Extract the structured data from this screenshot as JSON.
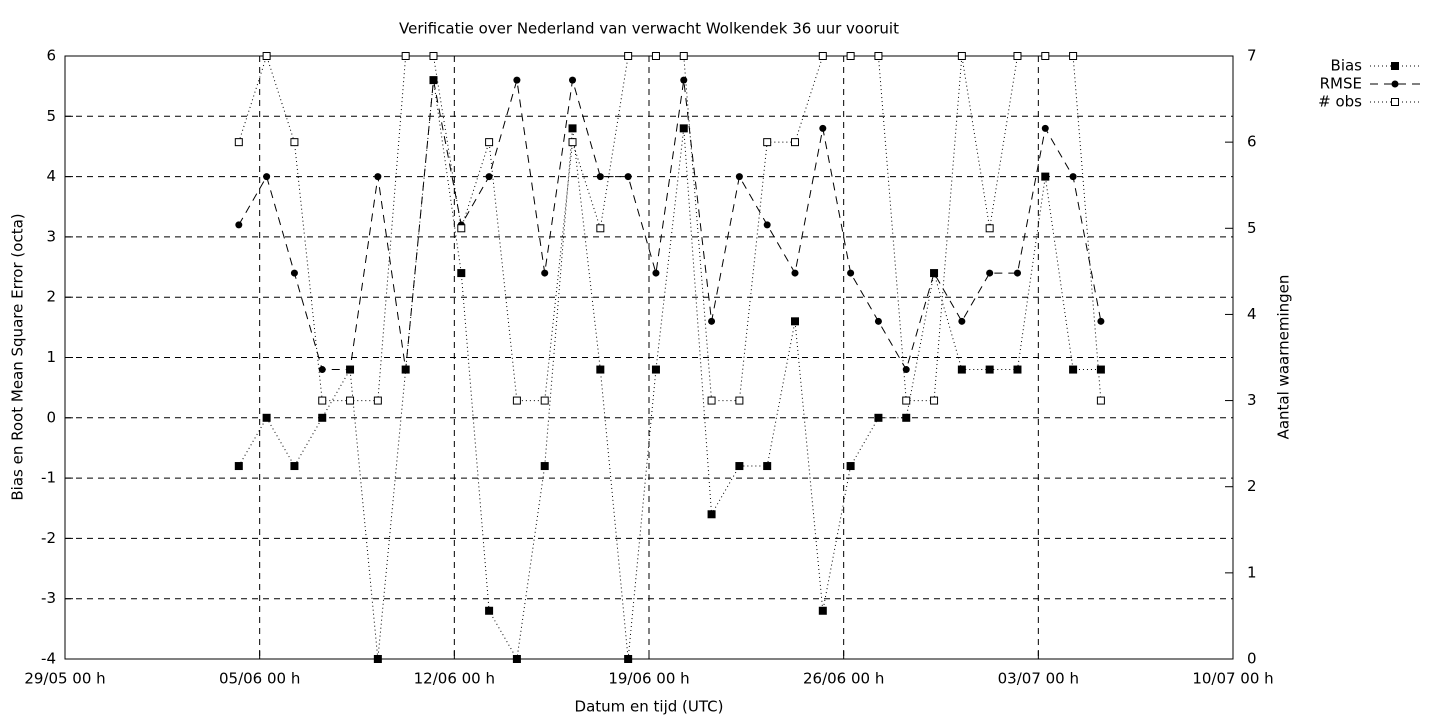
{
  "chart_data": {
    "type": "line",
    "title": "Verificatie over Nederland van verwacht Wolkendek 36 uur vooruit",
    "x_label": "Datum en tijd (UTC)",
    "y_label": "Bias en Root Mean Square Error (octa)",
    "y2_label": "Aantal waarnemingen",
    "x": [
      6.25,
      7.25,
      8.25,
      9.25,
      10.25,
      11.25,
      12.25,
      13.25,
      14.25,
      15.25,
      16.25,
      17.25,
      18.25,
      19.25,
      20.25,
      21.25,
      22.25,
      23.25,
      24.25,
      25.25,
      26.25,
      27.25,
      28.25,
      29.25,
      30.25,
      31.25,
      32.25,
      33.25,
      34.25,
      35.25,
      36.25,
      37.25
    ],
    "series": [
      {
        "name": "Bias",
        "color": "#000000",
        "dash": "dotted",
        "marker": "filled-square",
        "values": [
          -0.8,
          0,
          -0.8,
          0,
          0.8,
          -4,
          0.8,
          5.6,
          2.4,
          -3.2,
          -4,
          -0.8,
          4.8,
          0.8,
          -4,
          0.8,
          4.8,
          -1.6,
          -0.8,
          -0.8,
          1.6,
          -3.2,
          -0.8,
          0,
          0,
          2.4,
          0.8,
          0.8,
          0.8,
          4,
          0.8,
          0.8
        ]
      },
      {
        "name": "RMSE",
        "color": "#000000",
        "dash": "dashed",
        "marker": "filled-circle",
        "values": [
          3.2,
          4,
          2.4,
          0.8,
          0.8,
          4,
          0.8,
          5.6,
          3.2,
          4,
          5.6,
          2.4,
          5.6,
          4,
          4,
          2.4,
          5.6,
          1.6,
          4,
          3.2,
          2.4,
          4.8,
          2.4,
          1.6,
          0.8,
          2.4,
          1.6,
          2.4,
          2.4,
          4.8,
          4,
          1.6
        ]
      },
      {
        "name": "# obs",
        "color": "#000000",
        "dash": "dotted",
        "marker": "open-square",
        "axis": "y2",
        "values": [
          6,
          7,
          6,
          3,
          3,
          3,
          7,
          7,
          5,
          6,
          3,
          3,
          6,
          5,
          7,
          7,
          7,
          3,
          3,
          6,
          6,
          7,
          7,
          7,
          3,
          3,
          7,
          5,
          7,
          7,
          7,
          3
        ]
      }
    ],
    "xlim": [
      0,
      42
    ],
    "xticks": [
      {
        "value": 0,
        "label": "29/05 00 h"
      },
      {
        "value": 7,
        "label": "05/06 00 h"
      },
      {
        "value": 14,
        "label": "12/06 00 h"
      },
      {
        "value": 21,
        "label": "19/06 00 h"
      },
      {
        "value": 28,
        "label": "26/06 00 h"
      },
      {
        "value": 35,
        "label": "03/07 00 h"
      },
      {
        "value": 42,
        "label": "10/07 00 h"
      }
    ],
    "ylim": [
      -4,
      6
    ],
    "yticks": [
      -4,
      -3,
      -2,
      -1,
      0,
      1,
      2,
      3,
      4,
      5,
      6
    ],
    "y2lim": [
      0,
      7
    ],
    "y2ticks": [
      0,
      1,
      2,
      3,
      4,
      5,
      6,
      7
    ],
    "grid": true,
    "legend": "top-right-outside"
  }
}
